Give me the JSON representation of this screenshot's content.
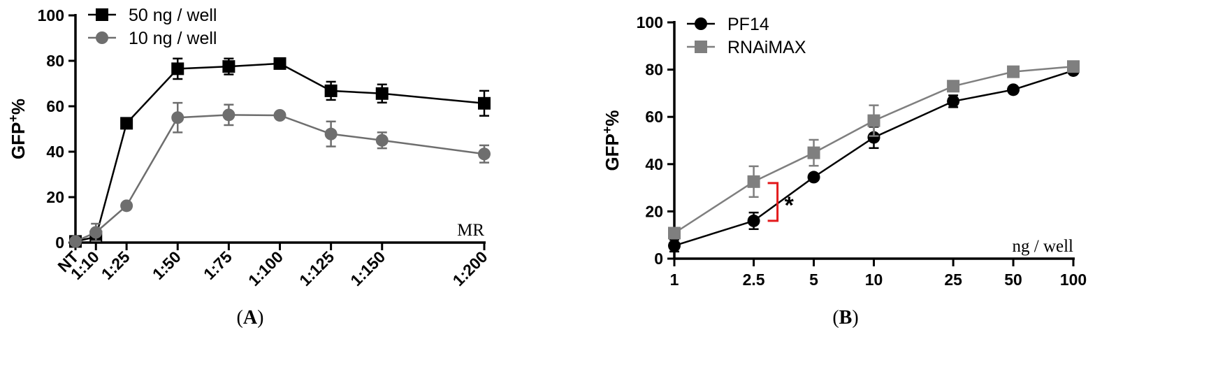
{
  "chart_data": [
    {
      "type": "line",
      "panel": "A",
      "panel_label": "A",
      "ylabel": "GFP",
      "ylabel_sup": "+",
      "ylabel_suffix": "%",
      "xlabel": "MR",
      "ylim": [
        0,
        100
      ],
      "yticks": [
        0,
        20,
        40,
        60,
        80,
        100
      ],
      "categories": [
        "NT",
        "1:10",
        "1:25",
        "1:50",
        "1:75",
        "1:100",
        "1:125",
        "1:150",
        "1:200"
      ],
      "x": [
        0,
        10,
        25,
        50,
        75,
        100,
        125,
        150,
        200
      ],
      "grid": false,
      "legend": "top-left",
      "series": [
        {
          "name": "50 ng / well",
          "marker": "square",
          "color": "#000000",
          "values": [
            0.5,
            2.5,
            52.5,
            76.5,
            77.5,
            78.8,
            66.8,
            65.6,
            61.3
          ],
          "errors": [
            0.5,
            1.5,
            1.0,
            4.5,
            3.5,
            2.0,
            4.0,
            4.0,
            5.5
          ]
        },
        {
          "name": "10 ng / well",
          "marker": "circle",
          "color": "#6e6e6e",
          "values": [
            0.5,
            4.5,
            16.2,
            55.0,
            56.2,
            56.0,
            47.8,
            45.0,
            39.0
          ],
          "errors": [
            0.5,
            3.8,
            1.0,
            6.5,
            4.5,
            1.0,
            5.5,
            3.5,
            3.8
          ]
        }
      ]
    },
    {
      "type": "line",
      "panel": "B",
      "panel_label": "B",
      "ylabel": "GFP",
      "ylabel_sup": "+",
      "ylabel_suffix": "%",
      "xlabel": "ng / well",
      "x_scale": "log",
      "ylim": [
        0,
        100
      ],
      "yticks": [
        0,
        20,
        40,
        60,
        80,
        100
      ],
      "categories": [
        "1",
        "2.5",
        "5",
        "10",
        "25",
        "50",
        "100"
      ],
      "x": [
        1,
        2.5,
        5,
        10,
        25,
        50,
        100
      ],
      "grid": false,
      "legend": "top-left",
      "annotation": {
        "text": "*",
        "between_x": 2.5,
        "range": [
          16,
          32
        ],
        "bracket_color": "#e31a1c"
      },
      "series": [
        {
          "name": "PF14",
          "marker": "circle",
          "color": "#000000",
          "values": [
            5.5,
            16.0,
            34.5,
            51.3,
            66.6,
            71.5,
            79.6
          ],
          "errors": [
            2.5,
            3.5,
            1.0,
            4.5,
            2.5,
            1.0,
            1.0
          ]
        },
        {
          "name": "RNAiMAX",
          "marker": "square",
          "color": "#7f7f7f",
          "values": [
            10.8,
            32.6,
            44.8,
            58.4,
            73.0,
            79.1,
            81.3
          ],
          "errors": [
            1.0,
            6.5,
            5.5,
            6.5,
            1.0,
            1.0,
            1.0
          ]
        }
      ]
    }
  ]
}
